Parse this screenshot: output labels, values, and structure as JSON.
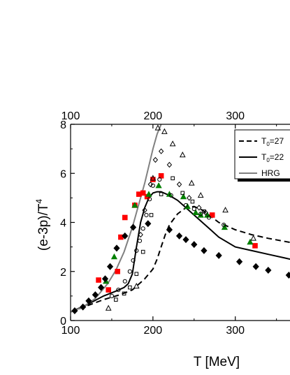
{
  "chart_data": {
    "type": "scatter",
    "title": "",
    "xlabel": "T [MeV]",
    "ylabel": "(e-3p)/T",
    "ylabel_superscript": "4",
    "xlim": [
      100,
      380
    ],
    "ylim": [
      0,
      8
    ],
    "x_ticks": [
      100,
      200,
      300
    ],
    "x_tick_labels": [
      "100",
      "200",
      "300"
    ],
    "top_ticks": [
      100,
      200,
      300
    ],
    "top_tick_labels": [
      "100",
      "200",
      "300"
    ],
    "y_ticks": [
      0,
      2,
      4,
      6,
      8
    ],
    "y_tick_labels": [
      "0",
      "2",
      "4",
      "6",
      "8"
    ],
    "grid": false,
    "legend_position": "top-right",
    "legend": [
      {
        "label_main": "T",
        "label_sub": "0",
        "label_rest": "=27",
        "style": "dashed",
        "color": "#000000"
      },
      {
        "label_main": "T",
        "label_sub": "0",
        "label_rest": "=22",
        "style": "solid",
        "color": "#000000"
      },
      {
        "label_main": "HRG",
        "label_sub": "",
        "label_rest": "",
        "style": "solid",
        "color": "#808080"
      }
    ],
    "curves": [
      {
        "style": "dashed",
        "color": "#000000",
        "x": [
          100,
          120,
          140,
          160,
          175,
          190,
          200,
          205,
          210,
          215,
          220,
          230,
          240,
          250,
          260,
          270,
          280,
          300,
          320,
          340,
          380
        ],
        "y": [
          0.35,
          0.6,
          0.85,
          1.05,
          1.25,
          1.7,
          2.1,
          2.5,
          3.0,
          3.5,
          3.9,
          4.35,
          4.6,
          4.65,
          4.5,
          4.25,
          4.0,
          3.7,
          3.5,
          3.35,
          3.1
        ]
      },
      {
        "style": "solid",
        "color": "#000000",
        "x": [
          100,
          120,
          140,
          155,
          165,
          170,
          175,
          180,
          185,
          190,
          195,
          200,
          205,
          210,
          220,
          230,
          240,
          250,
          260,
          270,
          280,
          300,
          320,
          340,
          360,
          380
        ],
        "y": [
          0.35,
          0.65,
          1.0,
          1.2,
          1.35,
          1.5,
          1.9,
          3.0,
          4.0,
          4.6,
          5.0,
          5.2,
          5.25,
          5.25,
          5.1,
          4.9,
          4.6,
          4.3,
          4.0,
          3.7,
          3.4,
          3.0,
          2.85,
          2.7,
          2.55,
          2.4
        ]
      },
      {
        "style": "solid",
        "color": "#808080",
        "x": [
          100,
          115,
          130,
          145,
          155,
          165,
          175,
          180,
          185,
          190,
          195,
          200,
          205,
          210
        ],
        "y": [
          0.35,
          0.55,
          0.9,
          1.5,
          2.05,
          2.8,
          3.8,
          4.4,
          5.0,
          5.6,
          6.3,
          7.0,
          7.6,
          8.0
        ]
      }
    ],
    "series": [
      {
        "marker": "square",
        "color": "#ff0000",
        "x": [
          134,
          146,
          157,
          161,
          166,
          178,
          183,
          188,
          193,
          200,
          210,
          272,
          324
        ],
        "y": [
          1.65,
          1.25,
          2.0,
          3.4,
          4.2,
          4.7,
          5.15,
          5.2,
          5.05,
          5.75,
          5.9,
          4.3,
          3.05
        ]
      },
      {
        "marker": "triangle",
        "color": "#008000",
        "x": [
          143,
          153,
          178,
          195,
          207,
          220,
          237,
          242,
          252,
          258,
          266,
          287,
          318
        ],
        "y": [
          1.6,
          2.6,
          4.7,
          5.15,
          5.5,
          5.15,
          5.05,
          4.65,
          4.4,
          4.3,
          4.3,
          3.8,
          3.2
        ]
      },
      {
        "marker": "diamond-filled",
        "color": "#000000",
        "x": [
          105,
          115,
          122,
          130,
          137,
          142,
          148,
          156,
          166,
          176,
          194,
          220,
          232,
          240,
          250,
          262,
          280,
          305,
          325,
          340,
          365
        ],
        "y": [
          0.4,
          0.55,
          0.8,
          1.05,
          1.35,
          1.7,
          2.2,
          2.95,
          3.45,
          3.8,
          3.95,
          3.7,
          3.45,
          3.3,
          3.1,
          2.85,
          2.65,
          2.4,
          2.2,
          2.05,
          1.85
        ]
      },
      {
        "marker": "triangle-open",
        "color": "#000000",
        "x": [
          146,
          180,
          200,
          206,
          214,
          224,
          236,
          247,
          258,
          288,
          322
        ],
        "y": [
          0.5,
          1.4,
          5.8,
          7.85,
          7.7,
          7.2,
          6.75,
          5.6,
          5.1,
          4.5,
          3.35
        ]
      },
      {
        "marker": "diamond-open",
        "color": "#000000",
        "x": [
          185,
          190,
          197,
          203,
          210,
          220,
          232,
          244,
          256,
          264
        ],
        "y": [
          3.5,
          4.5,
          5.55,
          6.55,
          6.9,
          6.35,
          5.55,
          5.0,
          4.6,
          4.4
        ]
      },
      {
        "marker": "circle-open",
        "color": "#000000",
        "x": [
          150,
          158,
          166,
          172,
          176,
          180,
          184,
          188,
          192,
          196,
          200,
          208,
          222,
          240,
          250,
          258,
          268,
          286
        ],
        "y": [
          1.0,
          1.25,
          1.6,
          2.0,
          2.45,
          2.85,
          3.25,
          3.75,
          4.3,
          4.95,
          5.5,
          5.75,
          5.1,
          4.7,
          4.55,
          4.35,
          4.2,
          3.9
        ]
      },
      {
        "marker": "square-open",
        "color": "#000000",
        "x": [
          155,
          165,
          172,
          180,
          188,
          198,
          210,
          224,
          236,
          248,
          262
        ],
        "y": [
          0.85,
          1.1,
          1.35,
          1.9,
          2.8,
          4.3,
          5.15,
          5.8,
          5.2,
          4.85,
          4.45
        ]
      }
    ]
  }
}
